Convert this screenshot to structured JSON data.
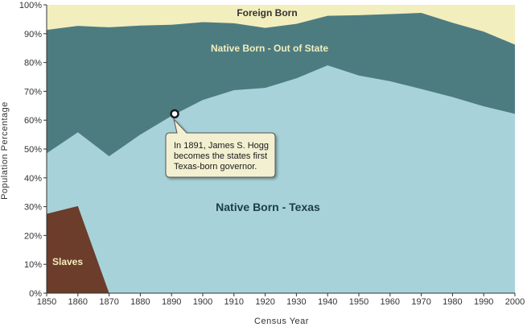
{
  "chart_data": {
    "type": "area",
    "stacked": true,
    "xlabel": "Census Year",
    "ylabel": "Population Percentage",
    "x": [
      1850,
      1860,
      1870,
      1880,
      1890,
      1900,
      1910,
      1920,
      1930,
      1940,
      1950,
      1960,
      1970,
      1980,
      1990,
      2000
    ],
    "xlim": [
      1850,
      2000
    ],
    "ylim": [
      0,
      100
    ],
    "x_ticks": [
      "1850",
      "1860",
      "1870",
      "1880",
      "1890",
      "1900",
      "1910",
      "1920",
      "1930",
      "1940",
      "1950",
      "1960",
      "1970",
      "1980",
      "1990",
      "2000"
    ],
    "y_ticks": [
      "0%",
      "10%",
      "20%",
      "30%",
      "40%",
      "50%",
      "60%",
      "70%",
      "80%",
      "90%",
      "100%"
    ],
    "grid": false,
    "legend": "none (labels inside areas)",
    "series": [
      {
        "name": "Slaves",
        "color": "#6b3d2a",
        "points": [
          [
            1850,
            27.5
          ],
          [
            1860,
            30.2
          ],
          [
            1870,
            0
          ],
          [
            2000,
            0
          ]
        ]
      },
      {
        "name": "Native Born - Texas",
        "color": "#a8d2d9",
        "cumulative_top": [
          48.5,
          55.8,
          47.5,
          55.0,
          61.5,
          67.0,
          70.4,
          71.2,
          74.5,
          79.0,
          75.5,
          73.5,
          70.8,
          68.0,
          64.8,
          62.2
        ]
      },
      {
        "name": "Native Born - Out of State",
        "color": "#4d7c80",
        "cumulative_top": [
          91.3,
          92.7,
          92.2,
          92.8,
          93.1,
          94.0,
          93.6,
          92.0,
          93.4,
          96.2,
          96.4,
          96.8,
          97.2,
          93.8,
          90.7,
          86.2
        ]
      },
      {
        "name": "Foreign Born",
        "color": "#f3eebe",
        "cumulative_top": [
          100,
          100,
          100,
          100,
          100,
          100,
          100,
          100,
          100,
          100,
          100,
          100,
          100,
          100,
          100,
          100
        ]
      }
    ],
    "annotation": {
      "x": 1891,
      "y": 62.2,
      "lines": [
        "In 1891, James S. Hogg",
        "becomes the states first",
        "Texas-born governor."
      ]
    }
  },
  "labels": {
    "foreign_born": "Foreign Born",
    "out_of_state": "Native Born - Out of State",
    "texas": "Native Born - Texas",
    "slaves": "Slaves"
  },
  "colors": {
    "foreign_label": "#333333",
    "out_of_state_label": "#f3eebe",
    "texas_label": "#1c3c4c",
    "slaves_label": "#f3eebe",
    "axis": "#333333"
  }
}
